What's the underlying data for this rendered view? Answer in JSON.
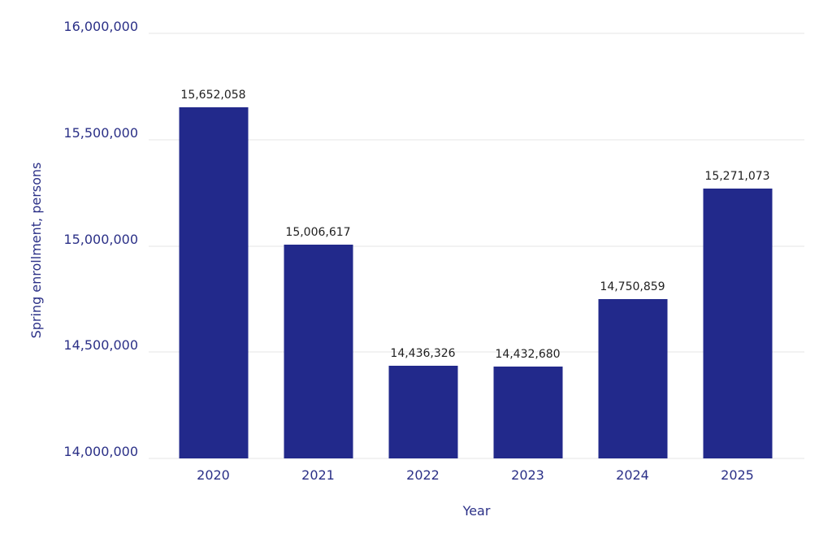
{
  "chart_data": {
    "type": "bar",
    "title": "",
    "xlabel": "Year",
    "ylabel": "Spring enrollment, persons",
    "categories": [
      "2020",
      "2021",
      "2022",
      "2023",
      "2024",
      "2025"
    ],
    "values": [
      15652058,
      15006617,
      14436326,
      14432680,
      14750859,
      15271073
    ],
    "value_labels": [
      "15,652,058",
      "15,006,617",
      "14,436,326",
      "14,432,680",
      "14,750,859",
      "15,271,073"
    ],
    "ylim": [
      14000000,
      16000000
    ],
    "yticks": [
      14000000,
      14500000,
      15000000,
      15500000,
      16000000
    ],
    "ytick_labels": [
      "14,000,000",
      "14,500,000",
      "15,000,000",
      "15,500,000",
      "16,000,000"
    ],
    "grid": true,
    "legend": "none",
    "colors": {
      "bar": "#22298b",
      "axis_text": "#2b3087",
      "value_label": "#212121",
      "gridline": "#e5e5e5",
      "background": "#ffffff"
    }
  }
}
